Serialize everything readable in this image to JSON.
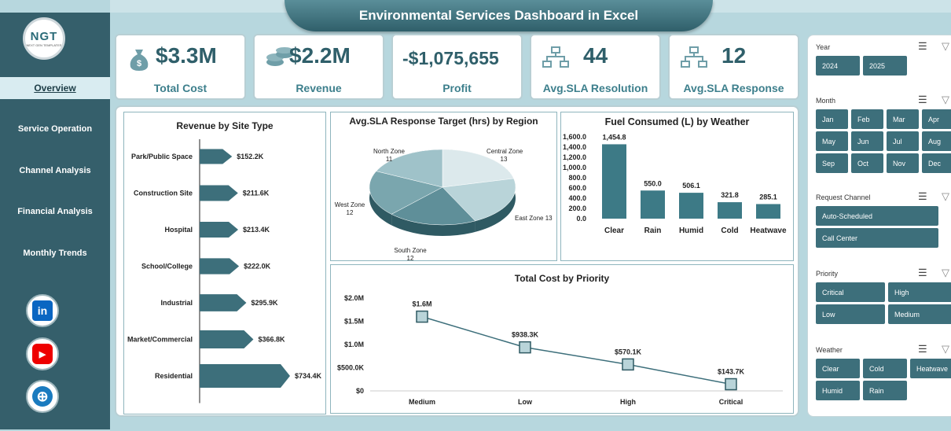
{
  "title": "Environmental Services Dashboard in Excel",
  "logo": {
    "text": "NGT",
    "sub": "NEXT GEN TEMPLATES"
  },
  "nav": [
    "Overview",
    "Service Operation",
    "Channel Analysis",
    "Financial  Analysis",
    "Monthly Trends"
  ],
  "social": {
    "linkedin": "in",
    "youtube": "▶",
    "web": "⊕"
  },
  "kpis": [
    {
      "value": "$3.3M",
      "label": "Total Cost",
      "icon": "money-bag-icon"
    },
    {
      "value": "$2.2M",
      "label": "Revenue",
      "icon": "coins-icon"
    },
    {
      "value": "-$1,075,655",
      "label": "Profit",
      "icon": ""
    },
    {
      "value": "44",
      "label": "Avg.SLA Resolution",
      "icon": "hierarchy-icon"
    },
    {
      "value": "12",
      "label": "Avg.SLA Response",
      "icon": "hierarchy-icon"
    }
  ],
  "chart_data": [
    {
      "type": "bar",
      "orientation": "horizontal",
      "title": "Revenue by Site Type",
      "categories": [
        "Park/Public Space",
        "Construction Site",
        "Hospital",
        "School/College",
        "Industrial",
        "Market/Commercial",
        "Residential"
      ],
      "values": [
        152.2,
        211.6,
        213.4,
        222.0,
        295.9,
        366.8,
        734.4
      ],
      "labels": [
        "$152.2K",
        "$211.6K",
        "$213.4K",
        "$222.0K",
        "$295.9K",
        "$366.8K",
        "$734.4K"
      ]
    },
    {
      "type": "pie",
      "title": "Avg.SLA Response Target (hrs) by Region",
      "categories": [
        "Central Zone",
        "East Zone",
        "South Zone",
        "West Zone",
        "North Zone"
      ],
      "values": [
        13,
        13,
        12,
        12,
        11
      ],
      "colors": [
        "#dce9ec",
        "#b9d4d9",
        "#5f8f99",
        "#7aa6ae",
        "#9fc2c9"
      ]
    },
    {
      "type": "bar",
      "title": "Fuel Consumed (L) by Weather",
      "categories": [
        "Clear",
        "Rain",
        "Humid",
        "Cold",
        "Heatwave"
      ],
      "values": [
        1454.8,
        550.0,
        506.1,
        321.8,
        285.1
      ],
      "labels": [
        "1,454.8",
        "550.0",
        "506.1",
        "321.8",
        "285.1"
      ],
      "yticks": [
        "0.0",
        "200.0",
        "400.0",
        "600.0",
        "800.0",
        "1,000.0",
        "1,200.0",
        "1,400.0",
        "1,600.0"
      ],
      "ylim": [
        0,
        1600
      ]
    },
    {
      "type": "line",
      "title": "Total Cost by Priority",
      "categories": [
        "Medium",
        "Low",
        "High",
        "Critical"
      ],
      "values": [
        1.6,
        0.9383,
        0.5701,
        0.1437
      ],
      "labels": [
        "$1.6M",
        "$938.3K",
        "$570.1K",
        "$143.7K"
      ],
      "yticks": [
        "$0",
        "$500.0K",
        "$1.0M",
        "$1.5M",
        "$2.0M"
      ],
      "ylim": [
        0,
        2.0
      ]
    }
  ],
  "slicers": {
    "year": {
      "title": "Year",
      "items": [
        "2024",
        "2025"
      ]
    },
    "month": {
      "title": "Month",
      "items": [
        "Jan",
        "Feb",
        "Mar",
        "Apr",
        "May",
        "Jun",
        "Jul",
        "Aug",
        "Sep",
        "Oct",
        "Nov",
        "Dec"
      ]
    },
    "channel": {
      "title": "Request Channel",
      "items": [
        "Auto-Scheduled",
        "Call Center"
      ]
    },
    "priority": {
      "title": "Priority",
      "items": [
        "Critical",
        "High",
        "Low",
        "Medium"
      ]
    },
    "weather": {
      "title": "Weather",
      "items": [
        "Clear",
        "Cold",
        "Heatwave",
        "Humid",
        "Rain"
      ]
    }
  },
  "colors": {
    "accent": "#3d6f7b",
    "dark": "#355f6b",
    "bar": "#3d7a86"
  }
}
